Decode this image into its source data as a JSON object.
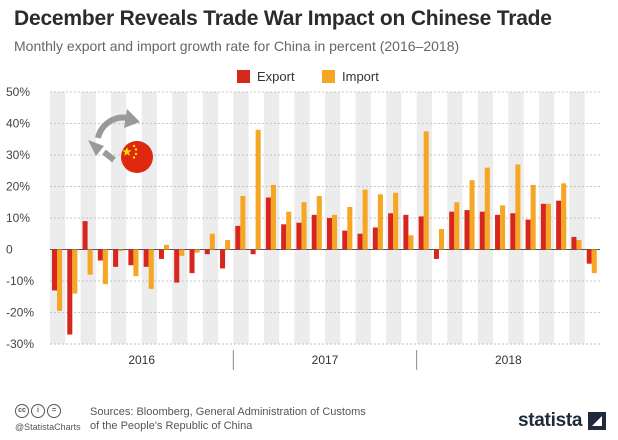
{
  "header": {
    "title": "December Reveals Trade War Impact on Chinese Trade",
    "subtitle": "Monthly export and import growth rate for China in percent (2016–2018)"
  },
  "chart_data": {
    "type": "bar",
    "title": "December Reveals Trade War Impact on Chinese Trade",
    "subtitle": "Monthly export and import growth rate for China in percent (2016–2018)",
    "ylim": [
      -30,
      50
    ],
    "yticks": [
      -30,
      -20,
      -10,
      0,
      10,
      20,
      30,
      40,
      50
    ],
    "ytick_labels": [
      "-30%",
      "-20%",
      "-10%",
      "0",
      "10%",
      "20%",
      "30%",
      "40%",
      "50%"
    ],
    "year_labels": [
      "2016",
      "2017",
      "2018"
    ],
    "months_per_year": 12,
    "legend_position": "top-center",
    "grid": true,
    "series": [
      {
        "name": "Export",
        "color": "#d7261e",
        "values": [
          -13,
          -27,
          9,
          -3.5,
          -5.5,
          -5,
          -5.5,
          -3,
          -10.5,
          -7.5,
          -1.5,
          -6,
          7.5,
          -1.5,
          16.5,
          8,
          8.5,
          11,
          10,
          6,
          5,
          7,
          11.5,
          11,
          10.5,
          -3,
          12,
          12.5,
          12,
          11,
          11.5,
          9.5,
          14.5,
          15.5,
          4,
          -4.5
        ]
      },
      {
        "name": "Import",
        "color": "#f5a623",
        "values": [
          -19.5,
          -14,
          -8,
          -11,
          -0.5,
          -8.5,
          -12.5,
          1.5,
          -2,
          -1,
          5,
          3,
          17,
          38,
          20.5,
          12,
          15,
          17,
          11,
          13.5,
          19,
          17.5,
          18,
          4.5,
          37.5,
          6.5,
          15,
          22,
          26,
          14,
          27,
          20.5,
          14.5,
          21,
          3,
          -7.5
        ]
      }
    ]
  },
  "footer": {
    "handle": "@StatistaCharts",
    "sources_line1": "Sources: Bloomberg, General Administration of Customs",
    "sources_line2": "of the People's Republic of China",
    "brand": "statista"
  }
}
